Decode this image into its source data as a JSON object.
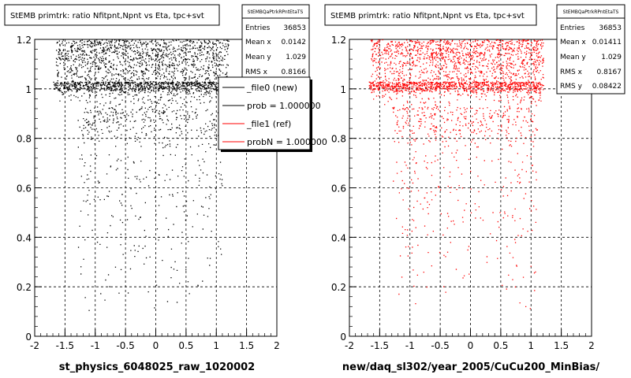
{
  "charts": [
    {
      "title": "StEMB primtrk: ratio Nfitpnt,Npnt vs Eta, tpc+svt",
      "xlabel": "st_physics_6048025_raw_1020002",
      "color": "#000000",
      "stats": {
        "header": "StEMBQaPtrkRPntEtaTS",
        "rows": [
          {
            "label": "Entries",
            "value": "36853"
          },
          {
            "label": "Mean x",
            "value": "0.0142"
          },
          {
            "label": "Mean y",
            "value": "1.029"
          },
          {
            "label": "RMS x",
            "value": "0.8166"
          }
        ]
      },
      "legend": [
        {
          "label": "_file0 (new)",
          "color": "#000000"
        },
        {
          "label": "prob = 1.000000",
          "color": "#000000"
        },
        {
          "label": "_file1 (ref)",
          "color": "#ff0000"
        },
        {
          "label": "probN = 1.000000",
          "color": "#ff0000"
        }
      ]
    },
    {
      "title": "StEMB primtrk: ratio Nfitpnt,Npnt vs Eta, tpc+svt",
      "xlabel": "new/daq_sl302/year_2005/CuCu200_MinBias/",
      "color": "#ff0000",
      "stats": {
        "header": "StEMBQaPtrkRPntEtaTS",
        "rows": [
          {
            "label": "Entries",
            "value": "36853"
          },
          {
            "label": "Mean x",
            "value": "0.01411"
          },
          {
            "label": "Mean y",
            "value": "1.029"
          },
          {
            "label": "RMS x",
            "value": "0.8167"
          },
          {
            "label": "RMS y",
            "value": "0.08422"
          }
        ]
      }
    }
  ],
  "chart_data": [
    {
      "type": "scatter",
      "title": "StEMB primtrk: ratio Nfitpnt,Npnt vs Eta, tpc+svt",
      "xlabel": "st_physics_6048025_raw_1020002",
      "ylabel": "",
      "xlim": [
        -2,
        2
      ],
      "ylim": [
        0,
        1.2
      ],
      "xticks": [
        "-2",
        "-1.5",
        "-1",
        "-0.5",
        "0",
        "0.5",
        "1",
        "1.5",
        "2"
      ],
      "yticks": [
        "0",
        "0.2",
        "0.4",
        "0.6",
        "0.8",
        "1",
        "1.2"
      ],
      "grid": true,
      "color": "#000000",
      "density_summary": {
        "entries": 36853,
        "mean_x": 0.0142,
        "mean_y": 1.029,
        "rms_x": 0.8166
      },
      "bands": [
        {
          "x": [
            -1.65,
            1.2
          ],
          "y": [
            0.93,
            1.2
          ],
          "weight": 0.55
        },
        {
          "x": [
            -1.7,
            1.15
          ],
          "y": [
            0.985,
            1.03
          ],
          "weight": 0.25
        },
        {
          "x": [
            -1.3,
            1.1
          ],
          "y": [
            0.75,
            0.93
          ],
          "weight": 0.12
        },
        {
          "x": [
            -1.3,
            1.1
          ],
          "y": [
            0.1,
            0.75
          ],
          "weight": 0.08
        }
      ]
    },
    {
      "type": "scatter",
      "title": "StEMB primtrk: ratio Nfitpnt,Npnt vs Eta, tpc+svt",
      "xlabel": "new/daq_sl302/year_2005/CuCu200_MinBias/",
      "ylabel": "",
      "xlim": [
        -2,
        2
      ],
      "ylim": [
        0,
        1.2
      ],
      "xticks": [
        "-2",
        "-1.5",
        "-1",
        "-0.5",
        "0",
        "0.5",
        "1",
        "1.5",
        "2"
      ],
      "yticks": [
        "0",
        "0.2",
        "0.4",
        "0.6",
        "0.8",
        "1",
        "1.2"
      ],
      "grid": true,
      "color": "#ff0000",
      "density_summary": {
        "entries": 36853,
        "mean_x": 0.01411,
        "mean_y": 1.029,
        "rms_x": 0.8167,
        "rms_y": 0.08422
      },
      "bands": [
        {
          "x": [
            -1.65,
            1.2
          ],
          "y": [
            0.93,
            1.2
          ],
          "weight": 0.55
        },
        {
          "x": [
            -1.7,
            1.15
          ],
          "y": [
            0.985,
            1.03
          ],
          "weight": 0.25
        },
        {
          "x": [
            -1.3,
            1.1
          ],
          "y": [
            0.75,
            0.93
          ],
          "weight": 0.12
        },
        {
          "x": [
            -1.3,
            1.1
          ],
          "y": [
            0.1,
            0.75
          ],
          "weight": 0.08
        }
      ]
    }
  ]
}
